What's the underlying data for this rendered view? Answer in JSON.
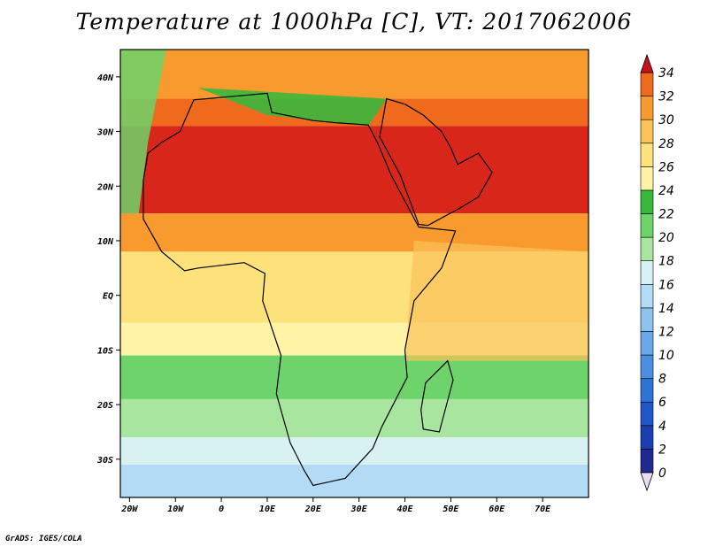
{
  "title": "Temperature at 1000hPa [C], VT: 2017062006",
  "credit": "GrADS: IGES/COLA",
  "map": {
    "lon_range": [
      -22,
      80
    ],
    "lat_range": [
      -37,
      45
    ],
    "lon_ticks": [
      {
        "lon": -20,
        "label": "20W"
      },
      {
        "lon": -10,
        "label": "10W"
      },
      {
        "lon": 0,
        "label": "0"
      },
      {
        "lon": 10,
        "label": "10E"
      },
      {
        "lon": 20,
        "label": "20E"
      },
      {
        "lon": 30,
        "label": "30E"
      },
      {
        "lon": 40,
        "label": "40E"
      },
      {
        "lon": 50,
        "label": "50E"
      },
      {
        "lon": 60,
        "label": "60E"
      },
      {
        "lon": 70,
        "label": "70E"
      }
    ],
    "lat_ticks": [
      {
        "lat": 40,
        "label": "40N"
      },
      {
        "lat": 30,
        "label": "30N"
      },
      {
        "lat": 20,
        "label": "20N"
      },
      {
        "lat": 10,
        "label": "10N"
      },
      {
        "lat": 0,
        "label": "EQ"
      },
      {
        "lat": -10,
        "label": "10S"
      },
      {
        "lat": -20,
        "label": "20S"
      },
      {
        "lat": -30,
        "label": "30S"
      }
    ],
    "bands": [
      {
        "lat_top": 45,
        "lat_bottom": 36,
        "level": 30
      },
      {
        "lat_top": 36,
        "lat_bottom": 31,
        "level": 32
      },
      {
        "lat_top": 31,
        "lat_bottom": 15,
        "level": 34
      },
      {
        "lat_top": 15,
        "lat_bottom": 8,
        "level": 30
      },
      {
        "lat_top": 8,
        "lat_bottom": -5,
        "level": 26
      },
      {
        "lat_top": -5,
        "lat_bottom": -11,
        "level": 24
      },
      {
        "lat_top": -11,
        "lat_bottom": -19,
        "level": 20
      },
      {
        "lat_top": -19,
        "lat_bottom": -26,
        "level": 18
      },
      {
        "lat_top": -26,
        "lat_bottom": -31,
        "level": 16
      },
      {
        "lat_top": -31,
        "lat_bottom": -37,
        "level": 14
      }
    ]
  },
  "colorbar": {
    "levels": [
      {
        "value": "0",
        "color": "#1f2a8f"
      },
      {
        "value": "2",
        "color": "#1b3fb0"
      },
      {
        "value": "4",
        "color": "#2157c9"
      },
      {
        "value": "6",
        "color": "#2e73d6"
      },
      {
        "value": "8",
        "color": "#4a8fe0"
      },
      {
        "value": "10",
        "color": "#6aa8ea"
      },
      {
        "value": "12",
        "color": "#8ec3f0"
      },
      {
        "value": "14",
        "color": "#b3dbf5"
      },
      {
        "value": "16",
        "color": "#d8f1f3"
      },
      {
        "value": "18",
        "color": "#a8e6a0"
      },
      {
        "value": "20",
        "color": "#6dd36a"
      },
      {
        "value": "22",
        "color": "#39b83c"
      },
      {
        "value": "24",
        "color": "#fff3a6"
      },
      {
        "value": "26",
        "color": "#fde17a"
      },
      {
        "value": "28",
        "color": "#fbc25a"
      },
      {
        "value": "30",
        "color": "#f99a2e"
      },
      {
        "value": "32",
        "color": "#f06a1e"
      },
      {
        "value": "34",
        "color": "#d9261a"
      }
    ],
    "under_color": "#e8dcf5",
    "over_color": "#c8101a"
  }
}
